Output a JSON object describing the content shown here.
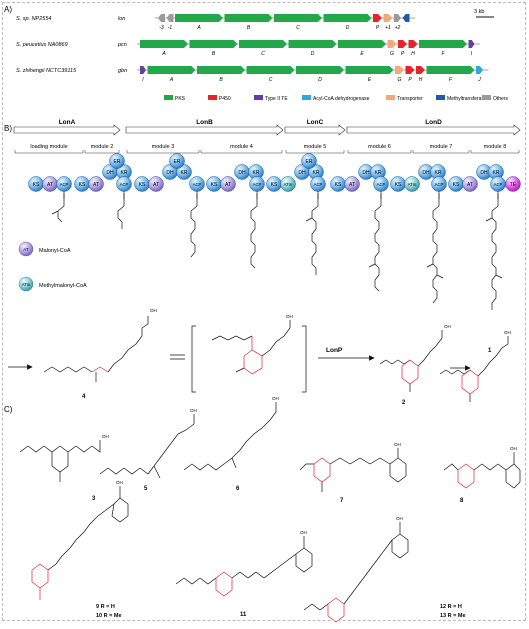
{
  "panelA": {
    "label": "A)",
    "scale": "3 kb",
    "clusters": [
      {
        "organism": "S. sp. NP2554",
        "name": "lon",
        "genes": [
          {
            "type": "others",
            "dir": -1,
            "label": "-3"
          },
          {
            "type": "others",
            "dir": -1,
            "label": "-1"
          },
          {
            "type": "pks",
            "dir": 1,
            "label": "A"
          },
          {
            "type": "pks",
            "dir": 1,
            "label": "B"
          },
          {
            "type": "pks",
            "dir": 1,
            "label": "C"
          },
          {
            "type": "pks",
            "dir": 1,
            "label": "D"
          },
          {
            "type": "p450",
            "dir": 1,
            "label": "P"
          },
          {
            "type": "transporter",
            "dir": 1,
            "label": "+1"
          },
          {
            "type": "others",
            "dir": 1,
            "label": "+2"
          },
          {
            "type": "methyl",
            "dir": -1,
            "label": ""
          }
        ]
      },
      {
        "organism": "S. peucetius NA0869",
        "name": "pcn",
        "genes": [
          {
            "type": "pks",
            "dir": 1,
            "label": "A"
          },
          {
            "type": "pks",
            "dir": 1,
            "label": "B"
          },
          {
            "type": "pks",
            "dir": 1,
            "label": "C"
          },
          {
            "type": "pks",
            "dir": 1,
            "label": "D"
          },
          {
            "type": "pks",
            "dir": 1,
            "label": "E"
          },
          {
            "type": "transporter",
            "dir": 1,
            "label": "G"
          },
          {
            "type": "p450",
            "dir": 1,
            "label": "P"
          },
          {
            "type": "p450",
            "dir": 1,
            "label": "H"
          },
          {
            "type": "pks",
            "dir": 1,
            "label": "F"
          },
          {
            "type": "te",
            "dir": 1,
            "label": "I"
          }
        ]
      },
      {
        "organism": "S. zhihengii NCTC39115",
        "name": "gbn",
        "genes": [
          {
            "type": "te",
            "dir": 1,
            "label": "I"
          },
          {
            "type": "pks",
            "dir": 1,
            "label": "A"
          },
          {
            "type": "pks",
            "dir": 1,
            "label": "B"
          },
          {
            "type": "pks",
            "dir": 1,
            "label": "C"
          },
          {
            "type": "pks",
            "dir": 1,
            "label": "D"
          },
          {
            "type": "pks",
            "dir": 1,
            "label": "E"
          },
          {
            "type": "transporter",
            "dir": 1,
            "label": "G"
          },
          {
            "type": "p450",
            "dir": 1,
            "label": "P"
          },
          {
            "type": "p450",
            "dir": 1,
            "label": "H"
          },
          {
            "type": "pks",
            "dir": 1,
            "label": "F"
          },
          {
            "type": "acyl",
            "dir": 1,
            "label": "J"
          }
        ]
      }
    ],
    "legend": [
      {
        "key": "pks",
        "label": "PKS",
        "color": "#22a84a"
      },
      {
        "key": "p450",
        "label": "P450",
        "color": "#e3242b"
      },
      {
        "key": "te",
        "label": "Type II TE",
        "color": "#6a3d9a"
      },
      {
        "key": "acyl",
        "label": "Acyl-CoA dehydrogenase",
        "color": "#29a9e0"
      },
      {
        "key": "transporter",
        "label": "Transporter",
        "color": "#f2a97e"
      },
      {
        "key": "methyl",
        "label": "Methyltransferase",
        "color": "#1f5aa6"
      },
      {
        "key": "others",
        "label": "Others",
        "color": "#9a9a9a"
      }
    ]
  },
  "panelB": {
    "label": "B)",
    "proteins": [
      "LonA",
      "LonB",
      "LonC",
      "LonD"
    ],
    "modules": [
      "loading module",
      "module 2",
      "module 3",
      "module 4",
      "module 5",
      "module 6",
      "module 7",
      "module 8"
    ],
    "domains": {
      "ks": "KS",
      "at": "AT",
      "acp": "ACP",
      "dh": "DH",
      "er": "ER",
      "kr": "KR",
      "atm": "ATm",
      "te": "TE"
    },
    "domain_legend": [
      {
        "key": "at",
        "text": "Malonyl-CoA"
      },
      {
        "key": "atm",
        "text": "Methylmalonyl-CoA"
      }
    ],
    "enzyme": "LonP",
    "compounds": {
      "c4": "4",
      "eq": "=",
      "c2": "2",
      "c1": "1",
      "oh": "OH"
    }
  },
  "panelC": {
    "label": "C)",
    "compounds": {
      "c3": "3",
      "c5": "5",
      "c6": "6",
      "c7": "7",
      "c8": "8",
      "c11": "11",
      "c9_10a": "9 R = H",
      "c9_10b": "10 R = Me",
      "c12_13a": "12 R = H",
      "c12_13b": "13 R = Me",
      "oh": "OH",
      "r": "R",
      "o": "O"
    }
  }
}
